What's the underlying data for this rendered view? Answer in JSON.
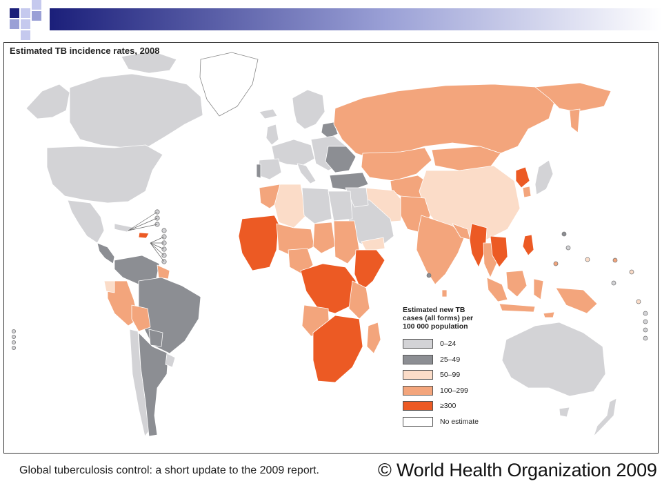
{
  "slide": {
    "caption": "Global tuberculosis control: a short update to the 2009 report.",
    "copyright": "© World Health Organization 2009"
  },
  "map": {
    "title": "Estimated TB incidence rates, 2008",
    "legend": {
      "title_lines": [
        "Estimated new TB",
        "cases (all forms) per",
        "100 000 population"
      ],
      "items": [
        {
          "label": "0–24",
          "color": "#d3d3d6"
        },
        {
          "label": "25–49",
          "color": "#8c8e93"
        },
        {
          "label": "50–99",
          "color": "#fbdcc8"
        },
        {
          "label": "100–299",
          "color": "#f3a57c"
        },
        {
          "label": "≥300",
          "color": "#ec5a24"
        },
        {
          "label": "No estimate",
          "color": "#ffffff"
        }
      ]
    }
  },
  "colors": {
    "deco_dark": "#1b1f7a",
    "deco_light": "#9aa0d6",
    "frame_border": "#333333",
    "country_border": "#ffffff"
  }
}
